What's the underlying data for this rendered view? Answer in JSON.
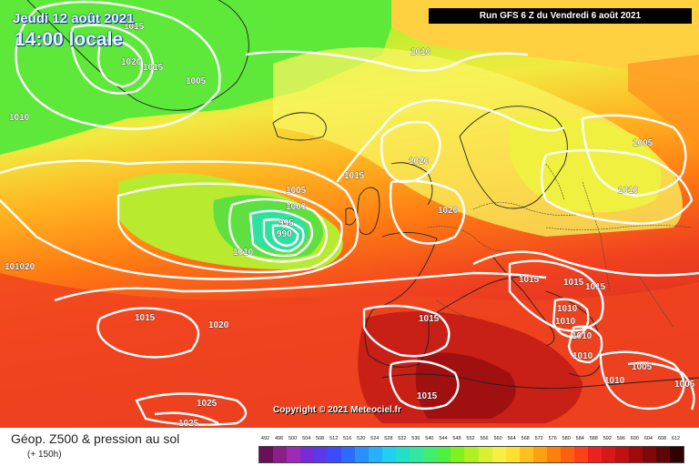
{
  "header": {
    "date": "Jeudi 12 août 2021",
    "time": "14:00 locale",
    "run": "Run GFS 6 Z du Vendredi 6 août 2021"
  },
  "map": {
    "copyright": "Copyright © 2021 Meteociel.fr",
    "isobar_labels": [
      "1015",
      "1020",
      "1015",
      "1005",
      "1010",
      "1010",
      "1015",
      "1020",
      "1005",
      "1000",
      "995",
      "990",
      "1010",
      "1020",
      "1010",
      "1005",
      "1010",
      "1015",
      "1020",
      "1015",
      "1020",
      "1015",
      "1015",
      "1015",
      "1010",
      "1010",
      "1010",
      "1005",
      "1010",
      "1015",
      "1025",
      "1025",
      "1005",
      "1010"
    ]
  },
  "footer": {
    "title": "Géop. Z500 & pression au sol",
    "subtitle": "(+ 150h)"
  },
  "legend": {
    "labels": [
      "492",
      "496",
      "500",
      "504",
      "508",
      "512",
      "516",
      "520",
      "524",
      "528",
      "532",
      "536",
      "540",
      "544",
      "548",
      "552",
      "556",
      "560",
      "564",
      "568",
      "572",
      "576",
      "580",
      "584",
      "588",
      "592",
      "596",
      "600",
      "604",
      "608",
      "612"
    ],
    "colors": [
      "#6a0f5a",
      "#8a1f8a",
      "#a02ab8",
      "#7a2ad8",
      "#5a3ae8",
      "#3a4aff",
      "#2f6aff",
      "#2890ff",
      "#26b0ff",
      "#20d0f0",
      "#20e0c8",
      "#30e8a0",
      "#40ee70",
      "#50f040",
      "#80f020",
      "#b0f020",
      "#d8f030",
      "#f8f040",
      "#ffe030",
      "#ffc020",
      "#ffa010",
      "#ff8008",
      "#ff6010",
      "#ff4018",
      "#f02020",
      "#d81818",
      "#c01010",
      "#a00a0a",
      "#800808",
      "#600505",
      "#300303"
    ]
  }
}
